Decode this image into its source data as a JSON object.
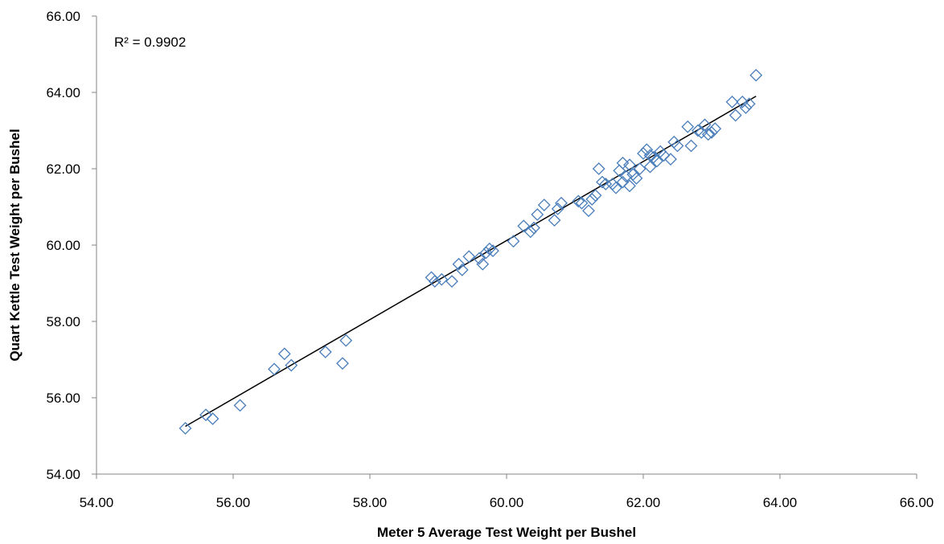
{
  "chart_data": {
    "type": "scatter",
    "xlabel": "Meter 5 Average Test Weight per Bushel",
    "ylabel": "Quart Kettle Test Weight per Bushel",
    "xlim": [
      54,
      66
    ],
    "ylim": [
      54,
      66
    ],
    "xticks": [
      "54.00",
      "56.00",
      "58.00",
      "60.00",
      "62.00",
      "64.00",
      "66.00"
    ],
    "yticks": [
      "54.00",
      "56.00",
      "58.00",
      "60.00",
      "62.00",
      "64.00",
      "66.00"
    ],
    "grid": false,
    "annotation": "R² = 0.9902",
    "marker": "diamond-open",
    "marker_color": "#4a7ebb",
    "trendline": {
      "type": "linear",
      "color": "#000000",
      "x": [
        55.3,
        63.65
      ],
      "y": [
        55.25,
        63.9
      ]
    },
    "series": [
      {
        "points": [
          [
            55.3,
            55.2
          ],
          [
            55.6,
            55.55
          ],
          [
            55.7,
            55.45
          ],
          [
            56.1,
            55.8
          ],
          [
            56.6,
            56.75
          ],
          [
            56.75,
            57.15
          ],
          [
            56.85,
            56.85
          ],
          [
            57.35,
            57.2
          ],
          [
            57.6,
            56.9
          ],
          [
            57.65,
            57.5
          ],
          [
            58.9,
            59.15
          ],
          [
            58.95,
            59.05
          ],
          [
            59.05,
            59.1
          ],
          [
            59.2,
            59.05
          ],
          [
            59.3,
            59.5
          ],
          [
            59.35,
            59.35
          ],
          [
            59.45,
            59.7
          ],
          [
            59.6,
            59.65
          ],
          [
            59.65,
            59.5
          ],
          [
            59.7,
            59.8
          ],
          [
            59.75,
            59.9
          ],
          [
            59.8,
            59.85
          ],
          [
            60.1,
            60.1
          ],
          [
            60.25,
            60.5
          ],
          [
            60.35,
            60.35
          ],
          [
            60.4,
            60.45
          ],
          [
            60.45,
            60.8
          ],
          [
            60.55,
            61.05
          ],
          [
            60.7,
            60.65
          ],
          [
            60.75,
            60.95
          ],
          [
            60.8,
            61.1
          ],
          [
            61.05,
            61.15
          ],
          [
            61.1,
            61.1
          ],
          [
            61.2,
            60.9
          ],
          [
            61.25,
            61.2
          ],
          [
            61.3,
            61.3
          ],
          [
            61.35,
            62.0
          ],
          [
            61.4,
            61.65
          ],
          [
            61.45,
            61.6
          ],
          [
            61.55,
            61.6
          ],
          [
            61.6,
            61.5
          ],
          [
            61.65,
            61.95
          ],
          [
            61.7,
            62.15
          ],
          [
            61.7,
            61.65
          ],
          [
            61.75,
            61.8
          ],
          [
            61.8,
            61.55
          ],
          [
            61.8,
            62.1
          ],
          [
            61.85,
            61.85
          ],
          [
            61.9,
            61.75
          ],
          [
            61.95,
            62.0
          ],
          [
            62.0,
            62.4
          ],
          [
            62.05,
            62.5
          ],
          [
            62.1,
            62.35
          ],
          [
            62.1,
            62.05
          ],
          [
            62.15,
            62.3
          ],
          [
            62.2,
            62.2
          ],
          [
            62.25,
            62.45
          ],
          [
            62.3,
            62.35
          ],
          [
            62.4,
            62.25
          ],
          [
            62.45,
            62.7
          ],
          [
            62.5,
            62.6
          ],
          [
            62.65,
            63.1
          ],
          [
            62.7,
            62.6
          ],
          [
            62.8,
            63.0
          ],
          [
            62.85,
            62.95
          ],
          [
            62.9,
            63.15
          ],
          [
            62.95,
            62.9
          ],
          [
            63.0,
            62.95
          ],
          [
            63.05,
            63.05
          ],
          [
            63.3,
            63.75
          ],
          [
            63.35,
            63.4
          ],
          [
            63.45,
            63.75
          ],
          [
            63.5,
            63.6
          ],
          [
            63.55,
            63.7
          ],
          [
            63.65,
            64.45
          ]
        ]
      }
    ]
  }
}
